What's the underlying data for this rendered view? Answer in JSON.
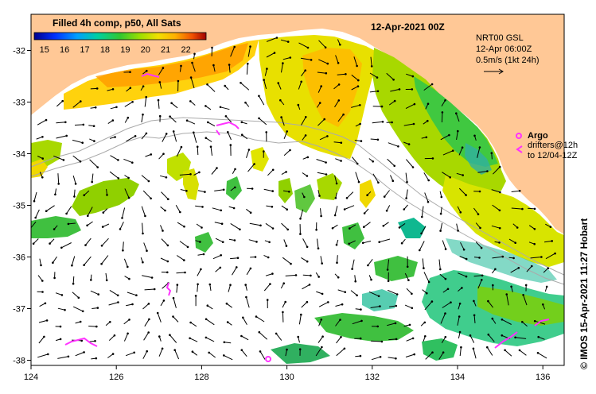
{
  "map": {
    "date_title": "12-Apr-2021 00Z",
    "colorbar": {
      "title": "Filled 4h comp, p50, All Sats",
      "ticks": [
        "15",
        "16",
        "17",
        "18",
        "19",
        "20",
        "21",
        "22"
      ],
      "min": 14.5,
      "max": 23
    },
    "current_info": {
      "line1": "NRT00 GSL",
      "line2": "12-Apr 06:00Z",
      "line3": "0.5m/s (1kt 24h)"
    },
    "argo_label": "Argo",
    "drifters_line1": "drifters@12h",
    "drifters_line2": "to 12/04-12Z",
    "credit": "© IMOS 15-Apr-2021 11:27 Hobart",
    "x_axis": {
      "ticks": [
        "124",
        "126",
        "128",
        "130",
        "132",
        "134",
        "136"
      ],
      "min": 124,
      "max": 136.5
    },
    "y_axis": {
      "ticks": [
        "-32",
        "-33",
        "-34",
        "-35",
        "-36",
        "-37",
        "-38"
      ],
      "min": -38.1,
      "max": -31.3
    },
    "colors": {
      "land": "#ffc896",
      "ocean": "#ffffff",
      "argo": "#ff33ff",
      "arrow": "#000000",
      "isobath": "#aaaaaa"
    }
  }
}
